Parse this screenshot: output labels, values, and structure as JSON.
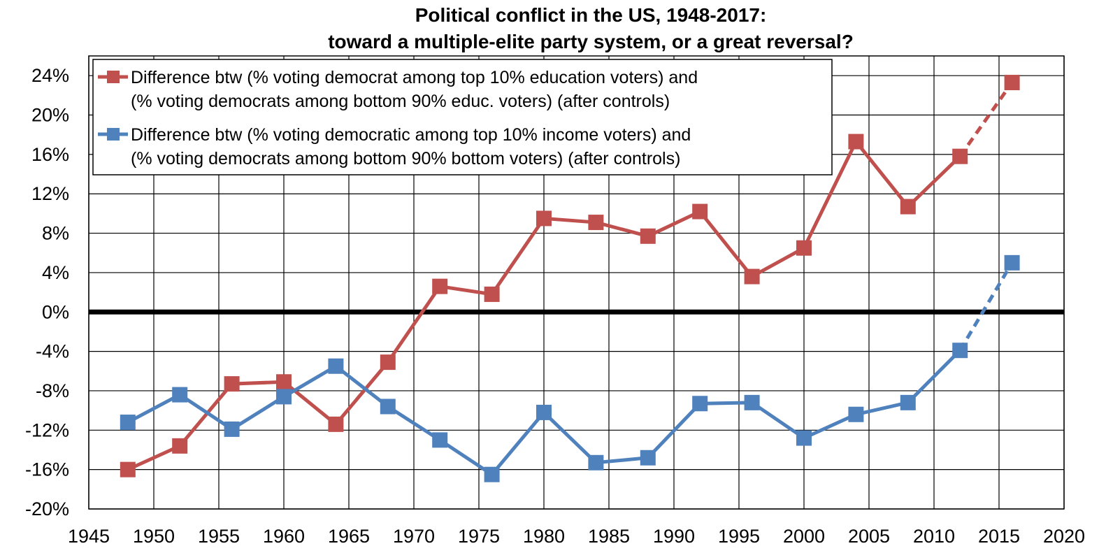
{
  "chart_data": {
    "type": "line",
    "title_line1": "Political conflict in the US, 1948-2017:",
    "title_line2": "toward a multiple-elite party system, or a great reversal?",
    "xlabel": "",
    "ylabel": "",
    "xlim": [
      1945,
      2020
    ],
    "ylim": [
      -20,
      26
    ],
    "x_ticks": [
      "1945",
      "1950",
      "1955",
      "1960",
      "1965",
      "1970",
      "1975",
      "1980",
      "1985",
      "1990",
      "1995",
      "2000",
      "2005",
      "2010",
      "2015",
      "2020"
    ],
    "y_ticks": [
      "24%",
      "20%",
      "16%",
      "12%",
      "8%",
      "4%",
      "0%",
      "-4%",
      "-8%",
      "-12%",
      "-16%",
      "-20%"
    ],
    "grid": true,
    "legend_placement": "top-left",
    "x": [
      1948,
      1952,
      1956,
      1960,
      1964,
      1968,
      1972,
      1976,
      1980,
      1984,
      1988,
      1992,
      1996,
      2000,
      2004,
      2008,
      2012,
      2016
    ],
    "series": [
      {
        "name_line1": "Difference btw (% voting democrat among top 10% education voters) and",
        "name_line2": "(% voting democrats among bottom 90% educ. voters) (after controls)",
        "color": "#c0504d",
        "values": [
          -16.0,
          -13.6,
          -7.3,
          -7.1,
          -11.4,
          -5.1,
          2.6,
          1.8,
          9.5,
          9.1,
          7.7,
          10.2,
          3.6,
          6.5,
          17.3,
          10.7,
          15.8,
          23.3
        ],
        "dashed_last_segment": true
      },
      {
        "name_line1": "Difference btw (% voting democratic among top 10% income voters) and",
        "name_line2": "(% voting democrats among bottom 90% bottom voters) (after controls)",
        "color": "#4f81bd",
        "values": [
          -11.2,
          -8.4,
          -11.9,
          -8.6,
          -5.5,
          -9.6,
          -13.0,
          -16.5,
          -10.2,
          -15.3,
          -14.8,
          -9.3,
          -9.2,
          -12.8,
          -10.4,
          -9.2,
          -3.9,
          5.0
        ],
        "dashed_last_segment": true
      }
    ]
  }
}
